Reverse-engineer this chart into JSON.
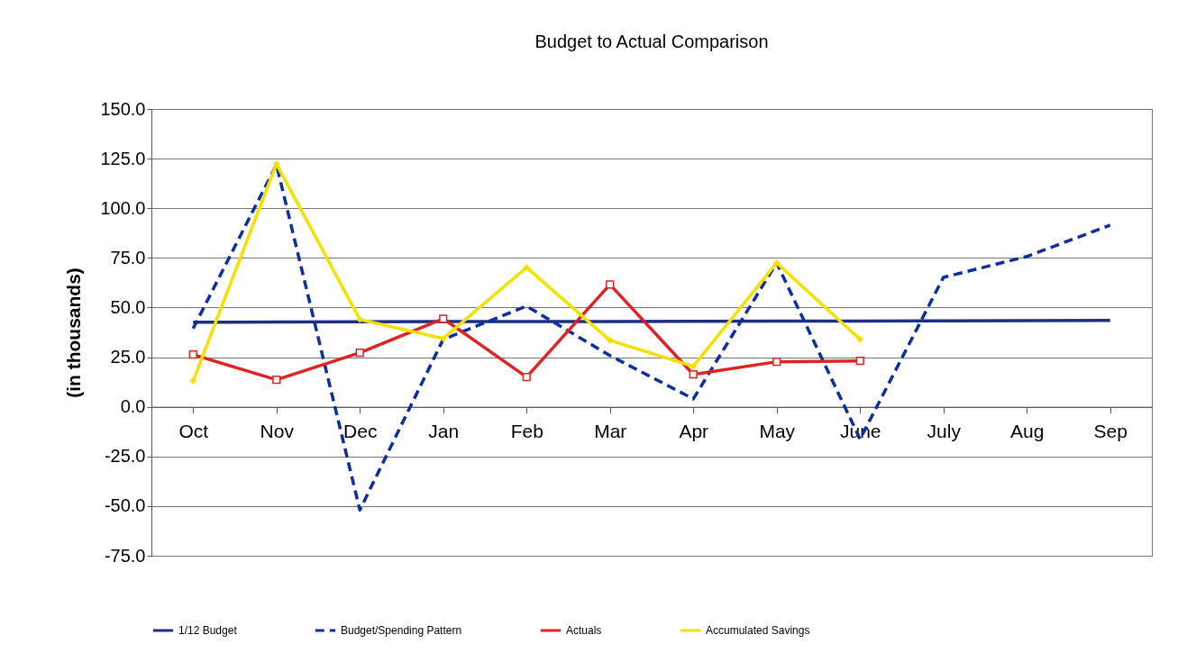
{
  "chart_data": {
    "type": "line",
    "title": "Budget to Actual Comparison",
    "ylabel": "(in thousands)",
    "categories": [
      "Oct",
      "Nov",
      "Dec",
      "Jan",
      "Feb",
      "Mar",
      "Apr",
      "May",
      "June",
      "July",
      "Aug",
      "Sep"
    ],
    "series": [
      {
        "name": "1/12 Budget",
        "color": "#1b2f86",
        "marker": "none",
        "line_style": "solid",
        "values": [
          42.6,
          42.7,
          42.8,
          42.9,
          43.0,
          43.0,
          43.1,
          43.2,
          43.2,
          43.3,
          43.4,
          43.5
        ]
      },
      {
        "name": "Budget/Spending Pattern",
        "color": "#0b2ea0",
        "marker": "none",
        "line_style": "dashed",
        "values": [
          39.4,
          121.9,
          -52.0,
          34.0,
          50.7,
          25.8,
          4.0,
          72.5,
          -16.3,
          65.2,
          75.7,
          91.5
        ]
      },
      {
        "name": "Actuals",
        "color": "#e02222",
        "marker": "square",
        "line_style": "solid",
        "values": [
          26.3,
          13.6,
          27.2,
          44.4,
          15.0,
          61.6,
          16.3,
          22.7,
          23.1,
          null,
          null,
          null
        ]
      },
      {
        "name": "Accumulated Savings",
        "color": "#f5e000",
        "marker": "diamond",
        "line_style": "solid",
        "values": [
          13.1,
          122.3,
          44.0,
          34.4,
          70.2,
          33.5,
          20.4,
          72.5,
          34.0,
          null,
          null,
          null
        ]
      }
    ],
    "ylim": [
      -75,
      150
    ],
    "yticks": [
      {
        "value": -75,
        "label": "-75.0"
      },
      {
        "value": -50,
        "label": "-50.0"
      },
      {
        "value": -25,
        "label": "-25.0"
      },
      {
        "value": 0,
        "label": "0.0"
      },
      {
        "value": 25,
        "label": "25.0"
      },
      {
        "value": 50,
        "label": "50.0"
      },
      {
        "value": 75,
        "label": "75.0"
      },
      {
        "value": 100,
        "label": "100.0"
      },
      {
        "value": 125,
        "label": "125.0"
      },
      {
        "value": 150,
        "label": "150.0"
      }
    ],
    "grid": "y",
    "legend": "bottom"
  }
}
